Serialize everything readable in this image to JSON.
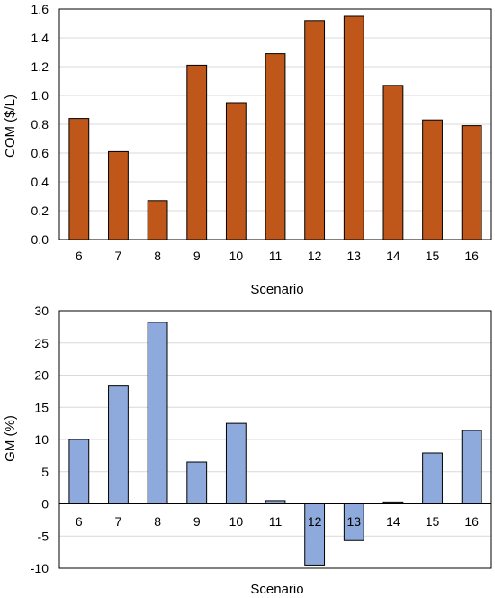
{
  "chart_data": [
    {
      "type": "bar",
      "xlabel": "Scenario",
      "ylabel": "COM ($/L)",
      "categories": [
        "6",
        "7",
        "8",
        "9",
        "10",
        "11",
        "12",
        "13",
        "14",
        "15",
        "16"
      ],
      "values": [
        0.84,
        0.61,
        0.27,
        1.21,
        0.95,
        1.29,
        1.52,
        1.55,
        1.07,
        0.83,
        0.79
      ],
      "ylim": [
        0,
        1.6
      ],
      "yticks": [
        "0.0",
        "0.2",
        "0.4",
        "0.6",
        "0.8",
        "1.0",
        "1.2",
        "1.4",
        "1.6"
      ],
      "grid": true,
      "color": "#C0571A"
    },
    {
      "type": "bar",
      "xlabel": "Scenario",
      "ylabel": "GM (%)",
      "categories": [
        "6",
        "7",
        "8",
        "9",
        "10",
        "11",
        "12",
        "13",
        "14",
        "15",
        "16"
      ],
      "values": [
        10.0,
        18.3,
        28.2,
        6.5,
        12.5,
        0.5,
        -9.5,
        -5.7,
        0.3,
        7.9,
        11.4
      ],
      "ylim": [
        -10,
        30
      ],
      "yticks": [
        "-10",
        "-5",
        "0",
        "5",
        "10",
        "15",
        "20",
        "25",
        "30"
      ],
      "grid": true,
      "color": "#8EA9DB"
    }
  ]
}
